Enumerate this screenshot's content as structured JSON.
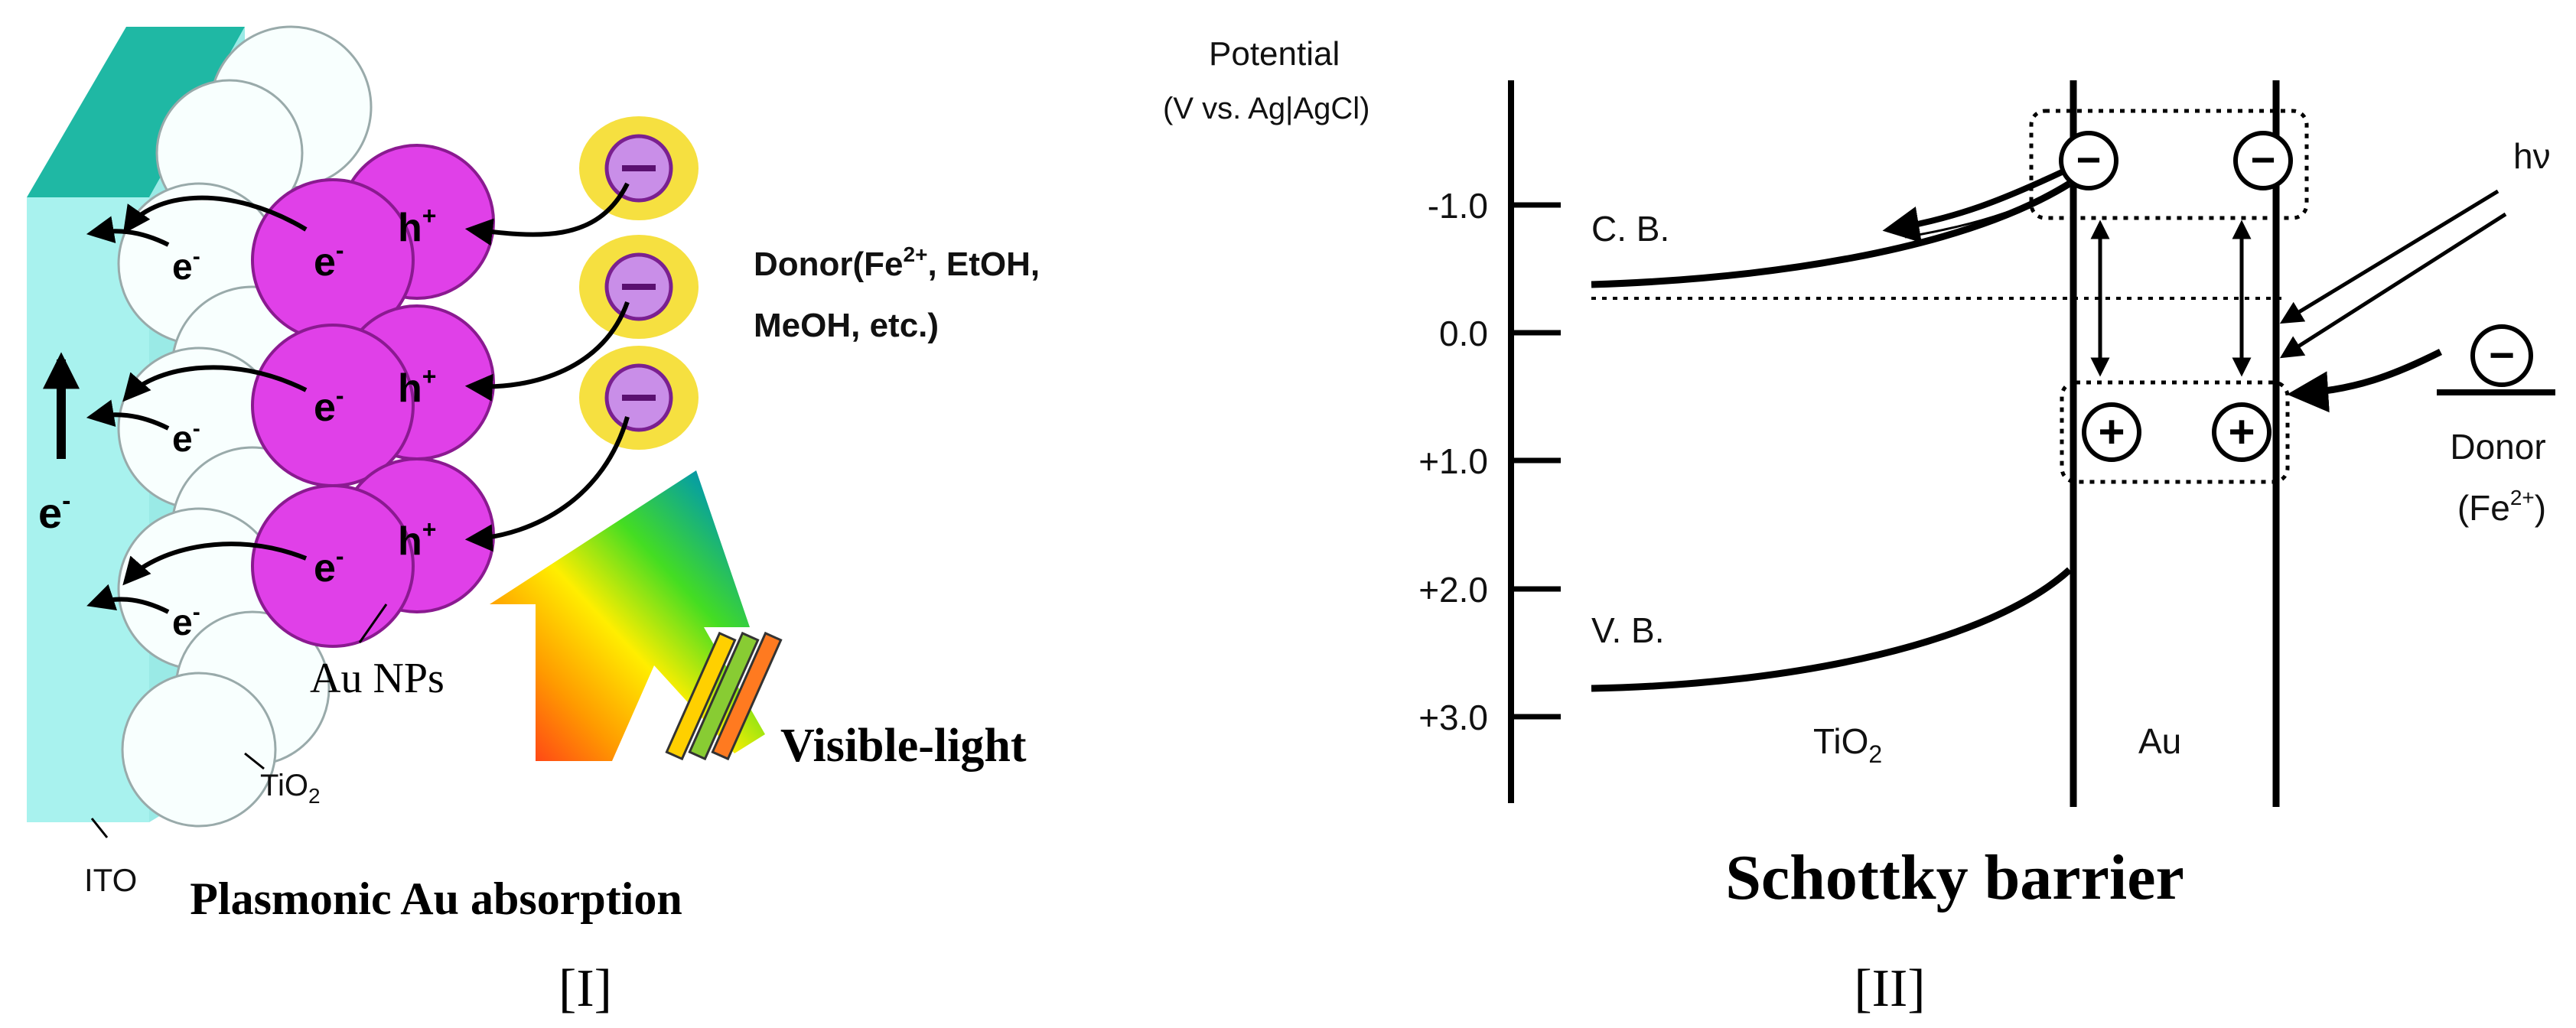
{
  "panel_1": {
    "caption_title": "Plasmonic Au absorption",
    "panel_label": "[I]",
    "substrate_label": "ITO",
    "semiconductor_label": "TiO",
    "semiconductor_sub": "2",
    "particles_label": "Au NPs",
    "light_label": "Visible-light",
    "electron_symbol": "e",
    "hole_symbol": "h",
    "minus_sign": "-",
    "plus_sign": "+",
    "donor_label_line1": "Donor(Fe",
    "donor_label_sup": "2+",
    "donor_label_line1_end": ", EtOH,",
    "donor_label_line2": "MeOH, etc.)",
    "colors": {
      "ito_face": "#a8f2ee",
      "ito_edge": "#1fb8a4",
      "au_particle": "#e040e8",
      "donor_halo": "#f6e040",
      "donor_core": "#c98ee8"
    }
  },
  "panel_2": {
    "caption_title": "Schottky barrier",
    "panel_label": "[II]",
    "axis_title_line1": "Potential",
    "axis_title_line2": "(V vs. Ag|AgCl)",
    "ticks": [
      "-1.0",
      "0.0",
      "+1.0",
      "+2.0",
      "+3.0"
    ],
    "cb_label": "C. B.",
    "vb_label": "V. B.",
    "region_tio2": "TiO",
    "region_tio2_sub": "2",
    "region_au": "Au",
    "light_label": "hν",
    "donor_label": "Donor",
    "donor_species": "(Fe",
    "donor_species_sup": "2+",
    "donor_species_end": ")",
    "electron_glyph": "−",
    "hole_glyph": "+"
  }
}
